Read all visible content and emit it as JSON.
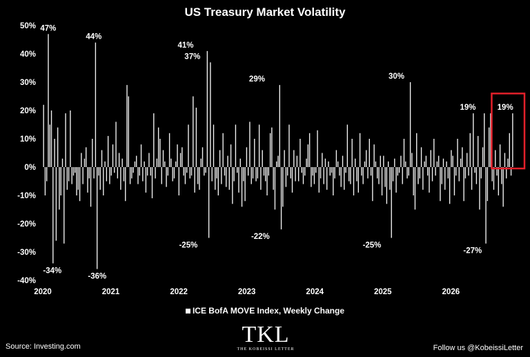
{
  "chart_data": {
    "type": "bar",
    "title": "US Treasury Market Volatility",
    "legend": "ICE BofA MOVE Index, Weekly Change",
    "y_ticks": [
      "50%",
      "40%",
      "30%",
      "20%",
      "10%",
      "0%",
      "-10%",
      "-20%",
      "-30%",
      "-40%"
    ],
    "ylim": [
      -40,
      50
    ],
    "x_ticks": [
      "2020",
      "2021",
      "2022",
      "2023",
      "2024",
      "2025",
      "2026"
    ],
    "xlim": [
      2020,
      2026.92
    ],
    "grid": false,
    "series": [
      {
        "values": [
          22,
          -10,
          -5,
          47,
          15,
          20,
          -34,
          10,
          -26,
          14,
          -15,
          -10,
          3,
          -27,
          19,
          -8,
          -5,
          20,
          -6,
          -3,
          -2,
          -10,
          -8,
          -12,
          5,
          -6,
          3,
          7,
          -9,
          -4,
          -14,
          10,
          -4,
          44,
          -36,
          -3,
          -8,
          6,
          -10,
          2,
          -5,
          11,
          -6,
          -3,
          8,
          -2,
          16,
          -4,
          5,
          -8,
          3,
          -5,
          -12,
          29,
          25,
          -6,
          -4,
          -2,
          2,
          4,
          -6,
          -3,
          8,
          -5,
          2,
          -9,
          -3,
          5,
          -3,
          -11,
          19,
          -4,
          3,
          14,
          10,
          -6,
          6,
          2,
          -7,
          -3,
          12,
          3,
          -5,
          -4,
          2,
          8,
          -10,
          5,
          7,
          -3,
          -6,
          -2,
          15,
          -4,
          -3,
          25,
          -9,
          21,
          -6,
          -8,
          3,
          7,
          -3,
          -2,
          41,
          -25,
          37,
          -5,
          15,
          -8,
          -4,
          -10,
          6,
          -6,
          12,
          -3,
          -7,
          4,
          -8,
          8,
          -13,
          -5,
          15,
          -2,
          -9,
          3,
          -14,
          -5,
          -12,
          7,
          -3,
          16,
          -6,
          -4,
          10,
          -5,
          -4,
          15,
          -8,
          6,
          -3,
          -5,
          -10,
          -3,
          12,
          14,
          -8,
          -15,
          2,
          4,
          29,
          -22,
          -14,
          6,
          -7,
          -3,
          15,
          -4,
          -9,
          6,
          -5,
          4,
          -5,
          10,
          -2,
          -6,
          -3,
          3,
          8,
          12,
          -7,
          -3,
          -6,
          -2,
          13,
          -9,
          -4,
          5,
          -6,
          3,
          -8,
          2,
          -3,
          -2,
          -10,
          -4,
          6,
          2,
          -3,
          -7,
          4,
          -8,
          -2,
          15,
          -5,
          -6,
          10,
          -10,
          3,
          -5,
          -9,
          12,
          -3,
          -6,
          2,
          6,
          -4,
          10,
          -3,
          -12,
          8,
          2,
          -4,
          -6,
          4,
          -10,
          4,
          -7,
          -13,
          2,
          -8,
          -25,
          -5,
          3,
          -9,
          -3,
          -2,
          4,
          -6,
          10,
          2,
          -4,
          -3,
          30,
          5,
          -10,
          -15,
          12,
          -6,
          -4,
          7,
          -8,
          2,
          4,
          -3,
          -9,
          6,
          -5,
          10,
          -3,
          2,
          4,
          -12,
          -6,
          3,
          -8,
          2,
          -4,
          -13,
          6,
          4,
          -10,
          -3,
          10,
          -5,
          3,
          7,
          -12,
          -4,
          5,
          -3,
          12,
          -8,
          19,
          -2,
          -6,
          11,
          -15,
          -4,
          7,
          19,
          -27,
          -12,
          14,
          19,
          -5,
          -8,
          6,
          -3,
          -10,
          8,
          -6,
          -14,
          5,
          -4,
          3,
          12,
          -3,
          19
        ]
      }
    ],
    "annotations": [
      {
        "text": "47%",
        "x": 2020.08,
        "y": 47
      },
      {
        "text": "-34%",
        "x": 2020.14,
        "y": -34
      },
      {
        "text": "44%",
        "x": 2020.75,
        "y": 44
      },
      {
        "text": "-36%",
        "x": 2020.8,
        "y": -36
      },
      {
        "text": "41%",
        "x": 2022.1,
        "y": 41
      },
      {
        "text": "37%",
        "x": 2022.2,
        "y": 37
      },
      {
        "text": "-25%",
        "x": 2022.14,
        "y": -25
      },
      {
        "text": "29%",
        "x": 2023.15,
        "y": 29
      },
      {
        "text": "-22%",
        "x": 2023.2,
        "y": -22
      },
      {
        "text": "30%",
        "x": 2025.2,
        "y": 30
      },
      {
        "text": "-25%",
        "x": 2024.84,
        "y": -25
      },
      {
        "text": "19%",
        "x": 2026.25,
        "y": 19
      },
      {
        "text": "-27%",
        "x": 2026.32,
        "y": -27
      },
      {
        "text": "19%",
        "x": 2026.8,
        "y": 19
      }
    ],
    "highlight_color": "#e3202a"
  },
  "footer": {
    "source": "Source: Investing.com",
    "follow": "Follow us @KobeissiLetter",
    "logo_mark": "TKL",
    "logo_sub": "THE KOBEISSI LETTER"
  }
}
